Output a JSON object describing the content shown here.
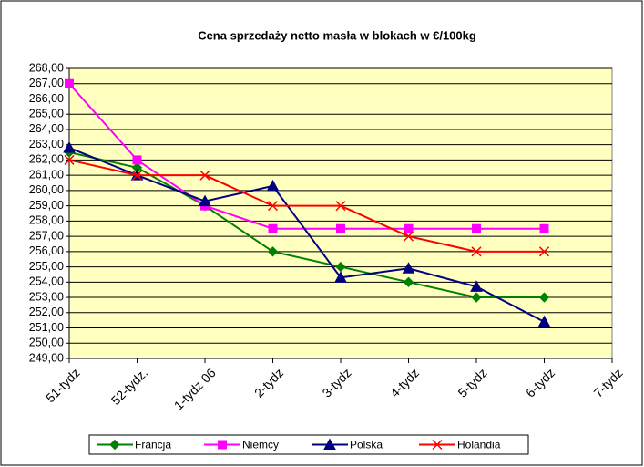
{
  "chart_data": {
    "type": "line",
    "title": "Cena sprzedaży netto masła w blokach w €/100kg",
    "categories": [
      "51-tydz",
      "52-tydz.",
      "1-tydz 06",
      "2-tydz",
      "3-tydz",
      "4-tydz",
      "5-tydz",
      "6-tydz",
      "7-tydz"
    ],
    "series": [
      {
        "name": "Francja",
        "color": "#008000",
        "marker": "diamond",
        "values": [
          262.5,
          261.5,
          259,
          256,
          255,
          254,
          253,
          253,
          null
        ]
      },
      {
        "name": "Niemcy",
        "color": "#ff00ff",
        "marker": "square",
        "values": [
          267,
          262,
          259,
          257.5,
          257.5,
          257.5,
          257.5,
          257.5,
          null
        ]
      },
      {
        "name": "Polska",
        "color": "#000080",
        "marker": "triangle",
        "values": [
          262.8,
          261,
          259.3,
          260.3,
          254.3,
          254.9,
          253.7,
          251.4,
          null
        ]
      },
      {
        "name": "Holandia",
        "color": "#ff0000",
        "marker": "x",
        "values": [
          262,
          261,
          261,
          259,
          259,
          257,
          256,
          256,
          null
        ]
      }
    ],
    "ylim": [
      249,
      268
    ],
    "yticks": [
      {
        "value": 249,
        "label": "249,00"
      },
      {
        "value": 250,
        "label": "250,00"
      },
      {
        "value": 251,
        "label": "251,00"
      },
      {
        "value": 252,
        "label": "252,00"
      },
      {
        "value": 253,
        "label": "253,00"
      },
      {
        "value": 254,
        "label": "254,00"
      },
      {
        "value": 255,
        "label": "255,00"
      },
      {
        "value": 256,
        "label": "256,00"
      },
      {
        "value": 257,
        "label": "257,00"
      },
      {
        "value": 258,
        "label": "258,00"
      },
      {
        "value": 259,
        "label": "259,00"
      },
      {
        "value": 260,
        "label": "260,00"
      },
      {
        "value": 261,
        "label": "261,00"
      },
      {
        "value": 262,
        "label": "262,00"
      },
      {
        "value": 263,
        "label": "263,00"
      },
      {
        "value": 264,
        "label": "264,00"
      },
      {
        "value": 265,
        "label": "265,00"
      },
      {
        "value": 266,
        "label": "266,00"
      },
      {
        "value": 267,
        "label": "267,00"
      },
      {
        "value": 268,
        "label": "268,00"
      }
    ],
    "grid": true,
    "plot_background": "#ffffc0",
    "legend": "bottom"
  }
}
